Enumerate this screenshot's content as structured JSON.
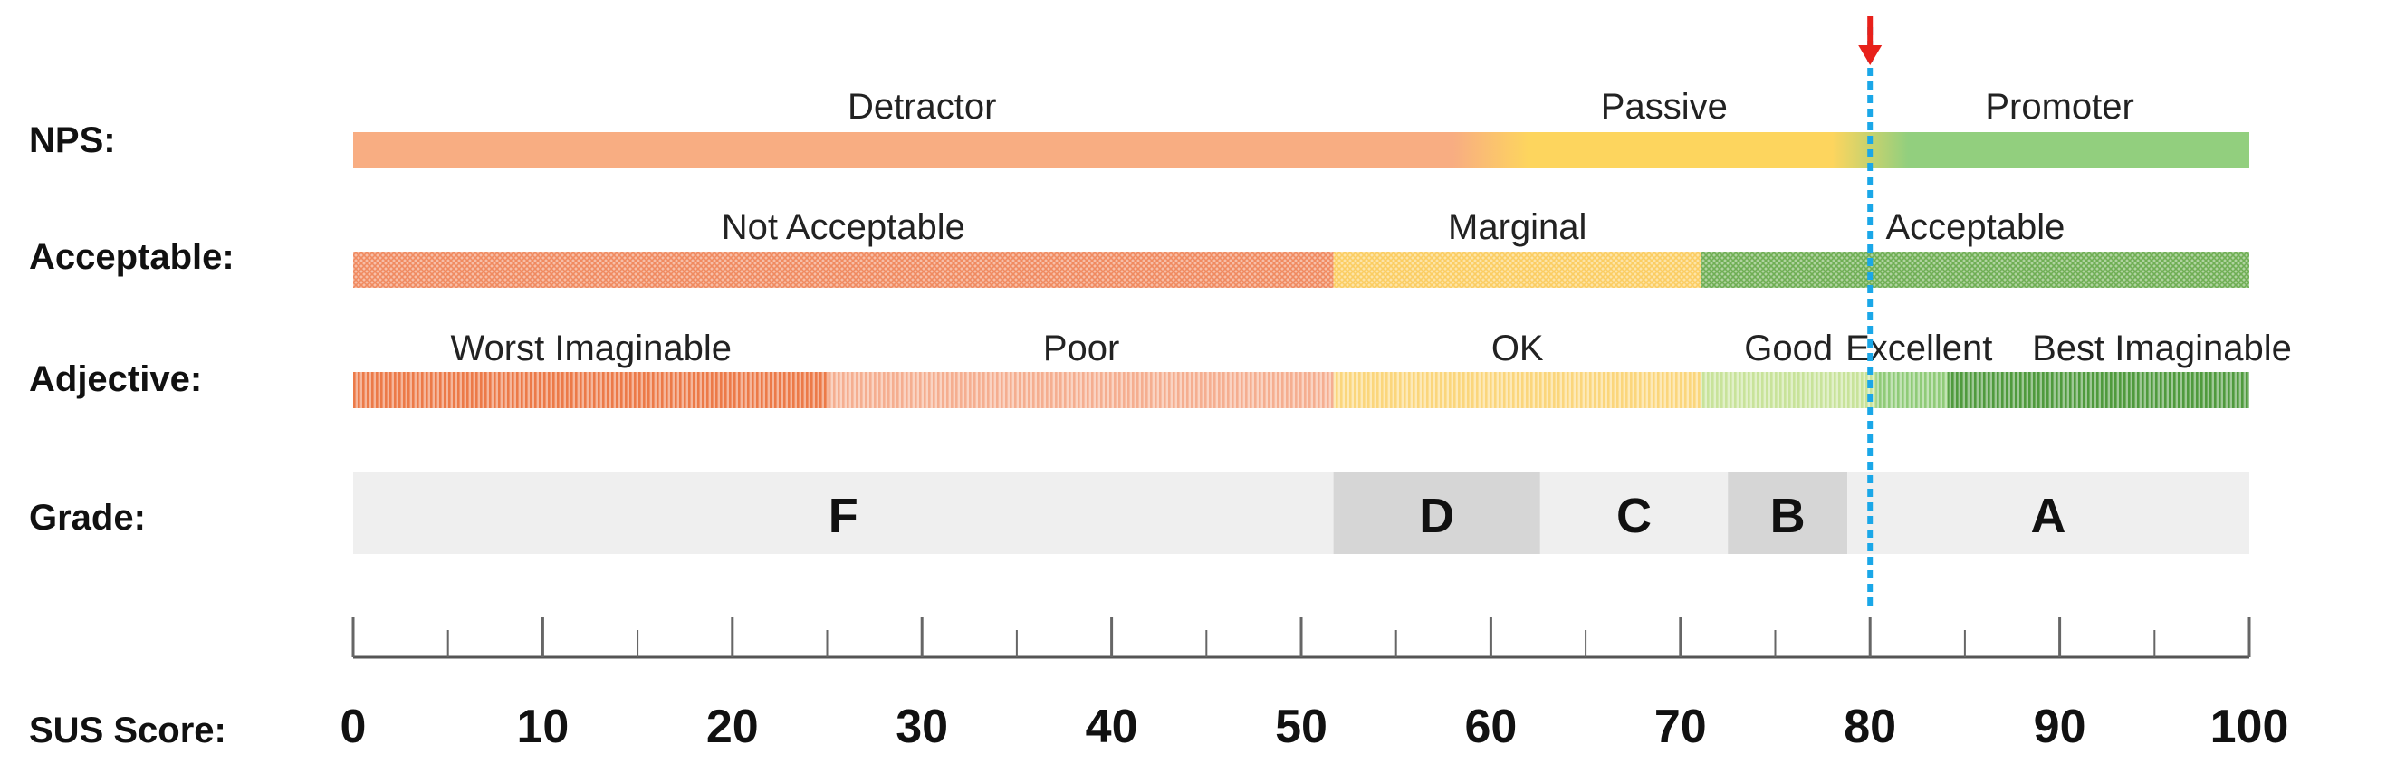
{
  "chart_data": {
    "type": "bar",
    "title": "",
    "xlabel": "SUS Score:",
    "xlim": [
      0,
      100
    ],
    "x_ticks": [
      "0",
      "10",
      "20",
      "30",
      "40",
      "50",
      "60",
      "70",
      "80",
      "90",
      "100"
    ],
    "x_tick_values": [
      0,
      10,
      20,
      30,
      40,
      50,
      60,
      70,
      80,
      90,
      100
    ],
    "minor_tick_step": 5,
    "marker": {
      "value": 80,
      "color": "#1aa7e8",
      "arrow_color": "#e8201a"
    },
    "rows": [
      {
        "label": "NPS:",
        "style": "solid",
        "segments": [
          {
            "label": "Detractor",
            "start": 0,
            "end": 60,
            "color": "#f8ad82"
          },
          {
            "label": "Passive",
            "start": 60,
            "end": 80,
            "color": "#fdd55e"
          },
          {
            "label": "Promoter",
            "start": 80,
            "end": 100,
            "color": "#92cf7e"
          }
        ]
      },
      {
        "label": "Acceptable:",
        "style": "crosshatch",
        "segments": [
          {
            "label": "Not Acceptable",
            "start": 0,
            "end": 51.7,
            "color": "#f08a60"
          },
          {
            "label": "Marginal",
            "start": 51.7,
            "end": 71.1,
            "color": "#fbcd62"
          },
          {
            "label": "Acceptable",
            "start": 71.1,
            "end": 100,
            "color": "#6fae54"
          }
        ]
      },
      {
        "label": "Adjective:",
        "style": "vertical-stripes",
        "segments": [
          {
            "label": "Worst Imaginable",
            "start": 0,
            "end": 25.1,
            "color": "#ec7a48"
          },
          {
            "label": "Poor",
            "start": 25.1,
            "end": 51.7,
            "color": "#f5ae90"
          },
          {
            "label": "OK",
            "start": 51.7,
            "end": 71.1,
            "color": "#fbd67c"
          },
          {
            "label": "Good",
            "start": 71.1,
            "end": 80.3,
            "color": "#c8e39a"
          },
          {
            "label": "Excellent",
            "start": 80.3,
            "end": 84.1,
            "color": "#8fcb78"
          },
          {
            "label": "Best Imaginable",
            "start": 84.1,
            "end": 100,
            "color": "#4f9a3d"
          }
        ]
      },
      {
        "label": "Grade:",
        "style": "grade",
        "segments": [
          {
            "label": "F",
            "start": 0,
            "end": 51.7,
            "color": "#efefef"
          },
          {
            "label": "D",
            "start": 51.7,
            "end": 62.6,
            "color": "#d6d6d6"
          },
          {
            "label": "C",
            "start": 62.6,
            "end": 72.5,
            "color": "#efefef"
          },
          {
            "label": "B",
            "start": 72.5,
            "end": 78.8,
            "color": "#d6d6d6"
          },
          {
            "label": "A",
            "start": 78.8,
            "end": 100,
            "color": "#efefef"
          }
        ]
      }
    ]
  }
}
